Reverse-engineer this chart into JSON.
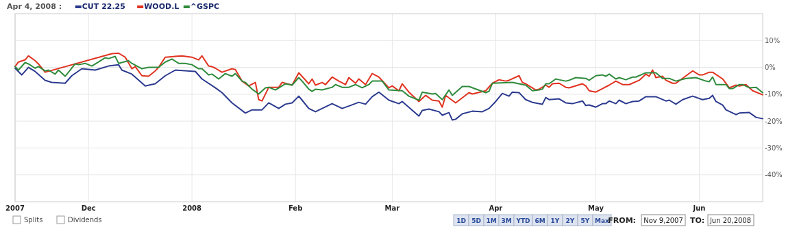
{
  "chart_data": {
    "type": "line",
    "legend_title": "Apr 4, 2008 :",
    "legend": "top left",
    "grid": true,
    "line_style": "solid",
    "marker": "none",
    "xlim": [
      "2007-11-09",
      "2008-06-20"
    ],
    "xticks": [
      {
        "value": "2007-11-09",
        "label": "2007"
      },
      {
        "value": "2007-12-01",
        "label": "Dec"
      },
      {
        "value": "2008-01-01",
        "label": "2008"
      },
      {
        "value": "2008-02-01",
        "label": "Feb"
      },
      {
        "value": "2008-03-01",
        "label": "Mar"
      },
      {
        "value": "2008-04-01",
        "label": "Apr"
      },
      {
        "value": "2008-05-01",
        "label": "May"
      },
      {
        "value": "2008-06-01",
        "label": "Jun"
      }
    ],
    "ylim": [
      -50,
      20
    ],
    "yticks": [
      {
        "value": 10,
        "label": "10%"
      },
      {
        "value": 0,
        "label": "0%"
      },
      {
        "value": -10,
        "label": "-10%"
      },
      {
        "value": -20,
        "label": "-20%"
      },
      {
        "value": -30,
        "label": "-30%"
      },
      {
        "value": -40,
        "label": "-40%"
      }
    ],
    "series": [
      {
        "name": "CUT 22.25",
        "color": "#2b3a8f",
        "x": [
          "2007-11-09",
          "2007-11-11",
          "2007-11-13",
          "2007-11-15",
          "2007-11-18",
          "2007-11-20",
          "2007-11-24",
          "2007-11-26",
          "2007-11-29",
          "2007-12-03",
          "2007-12-07",
          "2007-12-10",
          "2007-12-11",
          "2007-12-14",
          "2007-12-18",
          "2007-12-21",
          "2007-12-24",
          "2007-12-27",
          "2008-01-02",
          "2008-01-04",
          "2008-01-08",
          "2008-01-10",
          "2008-01-13",
          "2008-01-17",
          "2008-01-19",
          "2008-01-22",
          "2008-01-24",
          "2008-01-27",
          "2008-01-29",
          "2008-01-31",
          "2008-02-02",
          "2008-02-03",
          "2008-02-05",
          "2008-02-07",
          "2008-02-09",
          "2008-02-12",
          "2008-02-15",
          "2008-02-20",
          "2008-02-22",
          "2008-02-24",
          "2008-02-26",
          "2008-02-29",
          "2008-03-03",
          "2008-03-04",
          "2008-03-09",
          "2008-03-10",
          "2008-03-12",
          "2008-03-15",
          "2008-03-16",
          "2008-03-18",
          "2008-03-19",
          "2008-03-20",
          "2008-03-22",
          "2008-03-25",
          "2008-03-28",
          "2008-03-30",
          "2008-04-01",
          "2008-04-03",
          "2008-04-05",
          "2008-04-06",
          "2008-04-08",
          "2008-04-10",
          "2008-04-12",
          "2008-04-15",
          "2008-04-16",
          "2008-04-17",
          "2008-04-20",
          "2008-04-22",
          "2008-04-24",
          "2008-04-27",
          "2008-04-28",
          "2008-04-29",
          "2008-05-01",
          "2008-05-03",
          "2008-05-04",
          "2008-05-05",
          "2008-05-07",
          "2008-05-08",
          "2008-05-10",
          "2008-05-12",
          "2008-05-14",
          "2008-05-16",
          "2008-05-19",
          "2008-05-22",
          "2008-05-23",
          "2008-05-25",
          "2008-05-27",
          "2008-05-30",
          "2008-06-02",
          "2008-06-04",
          "2008-06-05",
          "2008-06-06",
          "2008-06-08",
          "2008-06-09",
          "2008-06-12",
          "2008-06-13",
          "2008-06-16",
          "2008-06-18",
          "2008-06-20"
        ],
        "values": [
          -0.3,
          -2.8,
          0,
          -1.5,
          -4.8,
          -5.6,
          -5.9,
          -3.1,
          -0.5,
          -1.0,
          0.5,
          1.0,
          -1.0,
          -2.5,
          -6.9,
          -6.1,
          -3.1,
          -1.0,
          -1.5,
          -4.3,
          -7.6,
          -9.4,
          -13.2,
          -17.0,
          -15.8,
          -15.8,
          -13.2,
          -15.3,
          -13.7,
          -13.2,
          -10.7,
          -12.2,
          -15.3,
          -16.5,
          -15.3,
          -13.5,
          -15.3,
          -13.0,
          -13.7,
          -10.9,
          -9.2,
          -12.2,
          -13.5,
          -12.7,
          -18.1,
          -16.0,
          -15.5,
          -16.5,
          -17.8,
          -16.8,
          -19.6,
          -19.3,
          -17.3,
          -16.3,
          -16.5,
          -15.3,
          -12.7,
          -9.7,
          -10.7,
          -9.2,
          -9.4,
          -12.0,
          -13.0,
          -13.7,
          -11.2,
          -12.0,
          -11.7,
          -13.2,
          -13.5,
          -12.5,
          -14.2,
          -14.0,
          -14.8,
          -13.5,
          -13.5,
          -12.5,
          -13.5,
          -12.2,
          -13.5,
          -12.7,
          -12.5,
          -10.9,
          -10.9,
          -12.5,
          -12.2,
          -13.7,
          -12.0,
          -10.7,
          -12.0,
          -11.5,
          -10.4,
          -12.7,
          -14.0,
          -15.8,
          -17.6,
          -17.0,
          -16.8,
          -18.6,
          -19.1
        ]
      },
      {
        "name": "WOOD.L",
        "color": "#e0321f",
        "x": [
          "2007-11-09",
          "2007-11-10",
          "2007-11-12",
          "2007-11-13",
          "2007-11-15",
          "2007-11-16",
          "2007-11-18",
          "2007-12-08",
          "2007-12-10",
          "2007-12-12",
          "2007-12-14",
          "2007-12-15",
          "2007-12-17",
          "2007-12-19",
          "2007-12-21",
          "2007-12-22",
          "2007-12-24",
          "2007-12-29",
          "2008-01-01",
          "2008-01-03",
          "2008-01-04",
          "2008-01-06",
          "2008-01-07",
          "2008-01-08",
          "2008-01-10",
          "2008-01-13",
          "2008-01-14",
          "2008-01-16",
          "2008-01-18",
          "2008-01-20",
          "2008-01-21",
          "2008-01-22",
          "2008-01-24",
          "2008-01-27",
          "2008-01-28",
          "2008-01-31",
          "2008-02-02",
          "2008-02-05",
          "2008-02-06",
          "2008-02-07",
          "2008-02-09",
          "2008-02-10",
          "2008-02-12",
          "2008-02-14",
          "2008-02-16",
          "2008-02-17",
          "2008-02-19",
          "2008-02-20",
          "2008-02-22",
          "2008-02-24",
          "2008-02-26",
          "2008-02-29",
          "2008-03-01",
          "2008-03-03",
          "2008-03-04",
          "2008-03-06",
          "2008-03-09",
          "2008-03-11",
          "2008-03-13",
          "2008-03-15",
          "2008-03-16",
          "2008-03-17",
          "2008-03-20",
          "2008-03-24",
          "2008-03-25",
          "2008-03-29",
          "2008-03-31",
          "2008-04-02",
          "2008-04-04",
          "2008-04-05",
          "2008-04-08",
          "2008-04-09",
          "2008-04-10",
          "2008-04-13",
          "2008-04-14",
          "2008-04-16",
          "2008-04-17",
          "2008-04-18",
          "2008-04-20",
          "2008-04-22",
          "2008-04-23",
          "2008-04-27",
          "2008-04-28",
          "2008-04-29",
          "2008-05-01",
          "2008-05-03",
          "2008-05-05",
          "2008-05-07",
          "2008-05-09",
          "2008-05-11",
          "2008-05-14",
          "2008-05-16",
          "2008-05-17",
          "2008-05-18",
          "2008-05-19",
          "2008-05-21",
          "2008-05-22",
          "2008-05-24",
          "2008-05-25",
          "2008-05-30",
          "2008-06-01",
          "2008-06-02",
          "2008-06-04",
          "2008-06-05",
          "2008-06-08",
          "2008-06-10",
          "2008-06-12",
          "2008-06-13",
          "2008-06-15",
          "2008-06-17",
          "2008-06-20"
        ],
        "values": [
          0.3,
          2.0,
          2.8,
          4.3,
          2.5,
          1.3,
          -1.8,
          5.1,
          5.3,
          3.8,
          -0.5,
          0.3,
          -3.1,
          -3.3,
          -1.3,
          0,
          3.8,
          4.3,
          3.8,
          2.8,
          4.3,
          0.5,
          0.3,
          -0.3,
          -1.8,
          -0.5,
          -0.8,
          -5.1,
          -6.9,
          -5.6,
          -12.0,
          -12.5,
          -7.4,
          -7.4,
          -5.6,
          -6.6,
          -2.0,
          -6.1,
          -4.3,
          -6.6,
          -5.6,
          -6.4,
          -3.6,
          -5.1,
          -6.4,
          -3.8,
          -5.9,
          -4.3,
          -6.4,
          -2.3,
          -3.6,
          -7.6,
          -6.9,
          -8.7,
          -6.1,
          -9.2,
          -12.7,
          -10.4,
          -12.2,
          -12.5,
          -14.8,
          -10.4,
          -13.2,
          -9.4,
          -9.9,
          -8.7,
          -5.9,
          -4.6,
          -5.1,
          -4.8,
          -3.1,
          -5.6,
          -6.1,
          -8.4,
          -8.1,
          -6.6,
          -7.4,
          -6.1,
          -5.9,
          -7.4,
          -7.6,
          -6.1,
          -6.9,
          -8.7,
          -9.2,
          -7.9,
          -6.6,
          -5.1,
          -6.4,
          -6.4,
          -4.8,
          -2.5,
          -3.3,
          -1.0,
          -3.8,
          -3.3,
          -4.8,
          -5.9,
          -5.9,
          -1.3,
          -2.8,
          -2.8,
          -1.8,
          -1.8,
          -4.3,
          -7.6,
          -6.6,
          -6.9,
          -6.4,
          -8.7,
          -10.2
        ]
      },
      {
        "name": "^GSPC",
        "color": "#2e8b3c",
        "x": [
          "2007-11-09",
          "2007-11-10",
          "2007-11-12",
          "2007-11-13",
          "2007-11-15",
          "2007-11-16",
          "2007-11-18",
          "2007-11-19",
          "2007-11-21",
          "2007-11-22",
          "2007-11-24",
          "2007-11-25",
          "2007-11-27",
          "2007-11-28",
          "2007-11-30",
          "2007-12-02",
          "2007-12-04",
          "2007-12-06",
          "2007-12-07",
          "2007-12-09",
          "2007-12-10",
          "2007-12-13",
          "2007-12-14",
          "2007-12-17",
          "2007-12-19",
          "2007-12-22",
          "2007-12-24",
          "2007-12-26",
          "2007-12-28",
          "2007-12-30",
          "2008-01-01",
          "2008-01-03",
          "2008-01-04",
          "2008-01-06",
          "2008-01-07",
          "2008-01-09",
          "2008-01-11",
          "2008-01-13",
          "2008-01-14",
          "2008-01-16",
          "2008-01-17",
          "2008-01-19",
          "2008-01-21",
          "2008-01-23",
          "2008-01-24",
          "2008-01-26",
          "2008-01-28",
          "2008-01-29",
          "2008-01-31",
          "2008-02-02",
          "2008-02-03",
          "2008-02-05",
          "2008-02-06",
          "2008-02-07",
          "2008-02-09",
          "2008-02-12",
          "2008-02-13",
          "2008-02-15",
          "2008-02-17",
          "2008-02-19",
          "2008-02-21",
          "2008-02-23",
          "2008-02-24",
          "2008-02-27",
          "2008-02-29",
          "2008-03-04",
          "2008-03-06",
          "2008-03-09",
          "2008-03-10",
          "2008-03-13",
          "2008-03-14",
          "2008-03-16",
          "2008-03-18",
          "2008-03-19",
          "2008-03-22",
          "2008-03-24",
          "2008-03-29",
          "2008-03-30",
          "2008-03-31",
          "2008-04-06",
          "2008-04-10",
          "2008-04-12",
          "2008-04-14",
          "2008-04-15",
          "2008-04-16",
          "2008-04-17",
          "2008-04-19",
          "2008-04-20",
          "2008-04-22",
          "2008-04-23",
          "2008-04-25",
          "2008-04-28",
          "2008-04-29",
          "2008-05-01",
          "2008-05-03",
          "2008-05-04",
          "2008-05-05",
          "2008-05-07",
          "2008-05-08",
          "2008-05-10",
          "2008-05-12",
          "2008-05-13",
          "2008-05-16",
          "2008-05-19",
          "2008-05-21",
          "2008-05-23",
          "2008-05-25",
          "2008-05-28",
          "2008-05-31",
          "2008-06-03",
          "2008-06-04",
          "2008-06-05",
          "2008-06-06",
          "2008-06-09",
          "2008-06-10",
          "2008-06-11",
          "2008-06-13",
          "2008-06-14",
          "2008-06-16",
          "2008-06-18",
          "2008-06-20"
        ],
        "values": [
          0.3,
          -1.0,
          1.8,
          1.3,
          -0.3,
          0.3,
          -1.3,
          -1.0,
          -2.5,
          -1.0,
          -3.3,
          -1.8,
          1.3,
          1.0,
          1.5,
          0.5,
          2.0,
          3.6,
          3.3,
          4.1,
          1.5,
          2.5,
          1.5,
          -0.5,
          0,
          0,
          2.0,
          3.1,
          1.5,
          1.5,
          1.0,
          -0.5,
          -0.5,
          -2.8,
          -2.5,
          -4.3,
          -2.3,
          -3.3,
          -2.3,
          -5.1,
          -5.6,
          -8.1,
          -9.9,
          -7.6,
          -7.4,
          -8.4,
          -6.9,
          -6.1,
          -6.6,
          -3.8,
          -5.1,
          -8.1,
          -8.9,
          -8.1,
          -8.4,
          -7.4,
          -6.4,
          -7.4,
          -7.4,
          -6.4,
          -7.6,
          -6.4,
          -5.1,
          -5.1,
          -8.4,
          -8.7,
          -10.7,
          -12.2,
          -9.2,
          -9.9,
          -9.7,
          -12.0,
          -8.4,
          -10.4,
          -7.1,
          -7.1,
          -9.4,
          -8.9,
          -5.9,
          -5.6,
          -6.6,
          -8.7,
          -8.4,
          -8.1,
          -6.1,
          -6.1,
          -4.3,
          -4.6,
          -5.1,
          -4.8,
          -3.8,
          -4.1,
          -4.8,
          -3.1,
          -2.8,
          -3.3,
          -2.5,
          -4.3,
          -3.8,
          -4.6,
          -3.6,
          -3.6,
          -2.0,
          -2.0,
          -4.1,
          -4.1,
          -5.1,
          -4.1,
          -3.8,
          -5.1,
          -5.3,
          -3.6,
          -6.4,
          -6.4,
          -7.9,
          -7.9,
          -6.4,
          -6.4,
          -7.6,
          -7.4,
          -9.4
        ]
      }
    ],
    "annotations": [
      "Splits",
      "Dividends",
      "1D",
      "5D",
      "1M",
      "3M",
      "YTD",
      "6M",
      "1Y",
      "2Y",
      "5Y",
      "Max",
      "FROM:",
      "Nov 9,2007",
      "TO:",
      "Jun 20,2008"
    ]
  }
}
